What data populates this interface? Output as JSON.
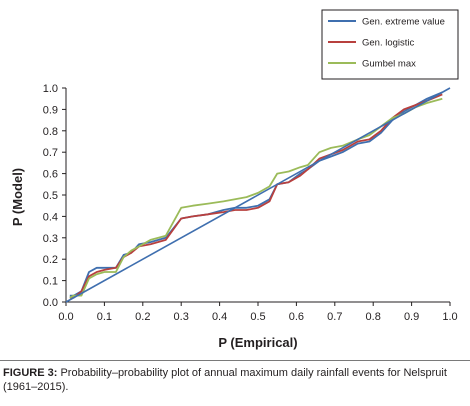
{
  "chart_data": {
    "type": "line",
    "xlabel": "P (Empirical)",
    "ylabel": "P (Model)",
    "xlim": [
      0,
      1
    ],
    "ylim": [
      0,
      1
    ],
    "xticks": [
      "0.0",
      "0.1",
      "0.2",
      "0.3",
      "0.4",
      "0.5",
      "0.6",
      "0.7",
      "0.8",
      "0.9",
      "1.0"
    ],
    "yticks": [
      "0.0",
      "0.1",
      "0.2",
      "0.3",
      "0.4",
      "0.5",
      "0.6",
      "0.7",
      "0.8",
      "0.9",
      "1.0"
    ],
    "grid": false,
    "legend_position": "top-right",
    "series": [
      {
        "name": "Gen. extreme value",
        "color": "#3f6faf",
        "x": [
          0.01,
          0.02,
          0.04,
          0.06,
          0.08,
          0.1,
          0.13,
          0.15,
          0.17,
          0.19,
          0.22,
          0.26,
          0.3,
          0.33,
          0.37,
          0.41,
          0.44,
          0.47,
          0.5,
          0.53,
          0.55,
          0.58,
          0.61,
          0.63,
          0.66,
          0.69,
          0.72,
          0.76,
          0.79,
          0.82,
          0.85,
          0.88,
          0.91,
          0.94,
          0.98
        ],
        "y": [
          0.03,
          0.03,
          0.05,
          0.14,
          0.16,
          0.16,
          0.16,
          0.22,
          0.23,
          0.27,
          0.28,
          0.3,
          0.39,
          0.4,
          0.41,
          0.43,
          0.44,
          0.44,
          0.45,
          0.48,
          0.55,
          0.56,
          0.6,
          0.62,
          0.66,
          0.68,
          0.7,
          0.74,
          0.75,
          0.79,
          0.85,
          0.89,
          0.92,
          0.95,
          0.98
        ]
      },
      {
        "name": "Gen. logistic",
        "color": "#b8403e",
        "x": [
          0.01,
          0.02,
          0.04,
          0.06,
          0.08,
          0.1,
          0.13,
          0.15,
          0.17,
          0.19,
          0.22,
          0.26,
          0.3,
          0.33,
          0.37,
          0.41,
          0.44,
          0.47,
          0.5,
          0.53,
          0.55,
          0.58,
          0.61,
          0.63,
          0.66,
          0.69,
          0.72,
          0.76,
          0.79,
          0.82,
          0.85,
          0.88,
          0.91,
          0.94,
          0.98
        ],
        "y": [
          0.02,
          0.02,
          0.05,
          0.12,
          0.14,
          0.15,
          0.16,
          0.21,
          0.23,
          0.26,
          0.27,
          0.29,
          0.39,
          0.4,
          0.41,
          0.42,
          0.43,
          0.43,
          0.44,
          0.47,
          0.55,
          0.56,
          0.59,
          0.62,
          0.67,
          0.69,
          0.71,
          0.75,
          0.76,
          0.8,
          0.86,
          0.9,
          0.92,
          0.94,
          0.97
        ]
      },
      {
        "name": "Gumbel max",
        "color": "#9bbb59",
        "x": [
          0.01,
          0.02,
          0.04,
          0.06,
          0.08,
          0.1,
          0.13,
          0.15,
          0.17,
          0.19,
          0.22,
          0.26,
          0.3,
          0.33,
          0.37,
          0.41,
          0.44,
          0.47,
          0.5,
          0.53,
          0.55,
          0.58,
          0.61,
          0.63,
          0.66,
          0.69,
          0.72,
          0.76,
          0.79,
          0.82,
          0.85,
          0.88,
          0.91,
          0.94,
          0.98
        ],
        "y": [
          0.02,
          0.03,
          0.03,
          0.11,
          0.13,
          0.14,
          0.14,
          0.21,
          0.24,
          0.26,
          0.29,
          0.31,
          0.44,
          0.45,
          0.46,
          0.47,
          0.48,
          0.49,
          0.51,
          0.54,
          0.6,
          0.61,
          0.63,
          0.64,
          0.7,
          0.72,
          0.73,
          0.76,
          0.78,
          0.82,
          0.86,
          0.88,
          0.91,
          0.93,
          0.95
        ]
      },
      {
        "name": "",
        "color": "#3f6faf",
        "role": "diagonal",
        "x": [
          0.0,
          1.0
        ],
        "y": [
          0.0,
          1.0
        ]
      }
    ]
  },
  "caption": {
    "label": "FIGURE 3:",
    "text": " Probability–probability plot of annual maximum daily rainfall events for Nelspruit (1961–2015)."
  }
}
